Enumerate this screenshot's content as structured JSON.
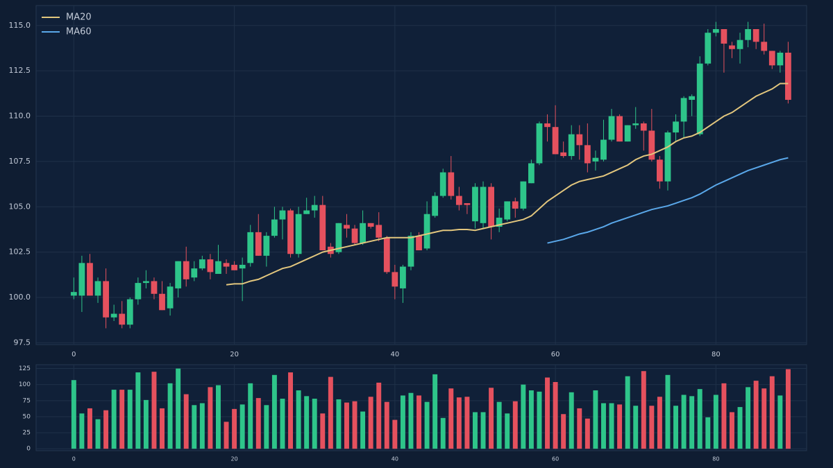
{
  "chart_data": [
    {
      "type": "candlestick",
      "x": [
        0,
        1,
        2,
        3,
        4,
        5,
        6,
        7,
        8,
        9,
        10,
        11,
        12,
        13,
        14,
        15,
        16,
        17,
        18,
        19,
        20,
        21,
        22,
        23,
        24,
        25,
        26,
        27,
        28,
        29,
        30,
        31,
        32,
        33,
        34,
        35,
        36,
        37,
        38,
        39,
        40,
        41,
        42,
        43,
        44,
        45,
        46,
        47,
        48,
        49,
        50,
        51,
        52,
        53,
        54,
        55,
        56,
        57,
        58,
        59,
        60,
        61,
        62,
        63,
        64,
        65,
        66,
        67,
        68,
        69,
        70,
        71,
        72,
        73,
        74,
        75,
        76,
        77,
        78,
        79,
        80,
        81,
        82,
        83,
        84,
        85,
        86,
        87,
        88,
        89
      ],
      "open": [
        100.1,
        100.1,
        101.9,
        100.1,
        100.9,
        98.9,
        99.1,
        98.5,
        99.9,
        100.8,
        100.9,
        100.2,
        99.4,
        100.5,
        102.0,
        101.1,
        101.6,
        102.1,
        101.3,
        101.9,
        101.8,
        101.6,
        101.9,
        103.6,
        102.3,
        103.4,
        104.3,
        104.8,
        102.4,
        104.6,
        104.8,
        105.1,
        102.8,
        102.5,
        104.0,
        103.8,
        103.0,
        104.1,
        104.0,
        103.3,
        101.4,
        100.5,
        101.7,
        103.4,
        102.7,
        104.5,
        105.6,
        106.9,
        105.6,
        105.2,
        104.2,
        104.1,
        106.1,
        103.9,
        104.3,
        105.3,
        104.9,
        106.3,
        107.4,
        109.6,
        109.4,
        108.0,
        107.8,
        109.0,
        108.4,
        107.5,
        107.6,
        108.7,
        110.0,
        108.6,
        109.5,
        109.6,
        109.2,
        107.6,
        106.4,
        109.1,
        109.7,
        110.9,
        109.0,
        112.9,
        114.6,
        114.8,
        113.9,
        113.7,
        114.2,
        114.8,
        114.1,
        113.6,
        112.8,
        113.5
      ],
      "high": [
        101.1,
        102.3,
        102.4,
        101.1,
        101.6,
        99.6,
        99.8,
        100.0,
        101.1,
        101.5,
        101.1,
        100.9,
        100.8,
        102.0,
        102.8,
        102.0,
        102.3,
        102.4,
        102.9,
        102.1,
        102.0,
        102.2,
        104.0,
        104.6,
        103.6,
        105.0,
        105.0,
        104.9,
        105.0,
        105.5,
        105.6,
        105.6,
        103.0,
        104.1,
        104.6,
        104.0,
        104.8,
        104.1,
        104.7,
        103.4,
        101.8,
        101.8,
        103.6,
        103.6,
        105.3,
        105.8,
        107.1,
        107.8,
        106.1,
        105.2,
        106.3,
        106.4,
        106.3,
        104.9,
        105.3,
        105.5,
        106.4,
        107.6,
        109.7,
        110.1,
        110.6,
        108.6,
        109.5,
        109.5,
        109.6,
        108.1,
        109.8,
        110.4,
        110.1,
        109.5,
        110.5,
        109.7,
        110.4,
        107.8,
        109.2,
        110.1,
        111.1,
        111.2,
        113.3,
        114.8,
        115.2,
        114.8,
        114.1,
        114.6,
        115.2,
        114.8,
        115.1,
        113.6,
        113.6,
        114.1
      ],
      "low": [
        99.9,
        99.2,
        100.1,
        99.7,
        98.3,
        98.7,
        98.3,
        98.3,
        99.6,
        100.5,
        99.9,
        99.3,
        99.0,
        100.0,
        100.6,
        100.9,
        101.5,
        101.0,
        101.3,
        101.3,
        101.5,
        99.8,
        101.7,
        102.3,
        101.7,
        103.3,
        103.2,
        102.2,
        102.2,
        104.6,
        104.4,
        102.6,
        102.2,
        102.4,
        103.3,
        102.9,
        102.9,
        103.8,
        103.1,
        101.3,
        99.9,
        99.7,
        101.5,
        102.6,
        102.6,
        104.4,
        105.5,
        105.4,
        104.8,
        104.6,
        103.8,
        103.8,
        103.2,
        103.6,
        104.2,
        104.4,
        104.8,
        106.3,
        107.3,
        108.6,
        107.9,
        107.7,
        107.6,
        107.6,
        106.9,
        107.0,
        107.5,
        108.6,
        108.6,
        108.6,
        109.3,
        108.1,
        107.5,
        106.0,
        105.9,
        108.6,
        108.8,
        110.0,
        108.9,
        112.8,
        114.4,
        112.4,
        113.2,
        112.9,
        113.8,
        113.7,
        113.4,
        112.6,
        112.4,
        110.7
      ],
      "close": [
        100.3,
        101.9,
        100.1,
        100.9,
        98.9,
        99.1,
        98.5,
        99.9,
        100.8,
        100.9,
        100.2,
        99.3,
        100.6,
        102.0,
        101.0,
        101.6,
        102.1,
        101.4,
        102.0,
        101.7,
        101.5,
        101.8,
        103.6,
        102.3,
        103.4,
        104.3,
        104.8,
        102.4,
        104.6,
        104.8,
        105.1,
        102.6,
        102.4,
        104.1,
        103.8,
        103.0,
        104.1,
        103.9,
        103.3,
        101.4,
        100.6,
        101.7,
        103.4,
        102.6,
        104.6,
        105.6,
        106.9,
        105.6,
        105.1,
        105.1,
        106.1,
        106.1,
        103.9,
        104.4,
        105.3,
        104.9,
        106.4,
        107.4,
        109.6,
        109.4,
        107.9,
        107.8,
        109.0,
        108.4,
        107.4,
        107.7,
        108.7,
        110.0,
        108.6,
        109.5,
        109.6,
        109.2,
        107.6,
        106.4,
        109.1,
        109.7,
        111.0,
        111.1,
        112.9,
        114.6,
        114.8,
        114.0,
        113.7,
        114.2,
        114.8,
        114.1,
        113.6,
        112.8,
        113.5,
        110.9
      ],
      "up_color": "#2ec58a",
      "down_color": "#e5515e",
      "series": [
        {
          "name": "MA20",
          "color": "#e3c77e",
          "values": [
            null,
            null,
            null,
            null,
            null,
            null,
            null,
            null,
            null,
            null,
            null,
            null,
            null,
            null,
            null,
            null,
            null,
            null,
            null,
            100.7,
            100.75,
            100.75,
            100.9,
            101.0,
            101.2,
            101.4,
            101.6,
            101.7,
            101.9,
            102.1,
            102.3,
            102.5,
            102.6,
            102.7,
            102.8,
            102.9,
            103.0,
            103.1,
            103.2,
            103.3,
            103.3,
            103.3,
            103.3,
            103.4,
            103.5,
            103.6,
            103.7,
            103.7,
            103.75,
            103.75,
            103.7,
            103.8,
            103.9,
            104.0,
            104.1,
            104.2,
            104.3,
            104.5,
            104.9,
            105.3,
            105.6,
            105.9,
            106.2,
            106.4,
            106.5,
            106.6,
            106.7,
            106.9,
            107.1,
            107.3,
            107.6,
            107.8,
            107.9,
            108.1,
            108.3,
            108.6,
            108.8,
            108.9,
            109.1,
            109.4,
            109.7,
            110.0,
            110.2,
            110.5,
            110.8,
            111.1,
            111.3,
            111.5,
            111.8,
            111.8
          ]
        },
        {
          "name": "MA60",
          "color": "#5aa8ea",
          "values": [
            null,
            null,
            null,
            null,
            null,
            null,
            null,
            null,
            null,
            null,
            null,
            null,
            null,
            null,
            null,
            null,
            null,
            null,
            null,
            null,
            null,
            null,
            null,
            null,
            null,
            null,
            null,
            null,
            null,
            null,
            null,
            null,
            null,
            null,
            null,
            null,
            null,
            null,
            null,
            null,
            null,
            null,
            null,
            null,
            null,
            null,
            null,
            null,
            null,
            null,
            null,
            null,
            null,
            null,
            null,
            null,
            null,
            null,
            null,
            103.0,
            103.1,
            103.2,
            103.35,
            103.5,
            103.6,
            103.75,
            103.9,
            104.1,
            104.25,
            104.4,
            104.55,
            104.7,
            104.85,
            104.95,
            105.05,
            105.2,
            105.35,
            105.5,
            105.7,
            105.95,
            106.2,
            106.4,
            106.6,
            106.8,
            107.0,
            107.15,
            107.3,
            107.45,
            107.6,
            107.7
          ]
        }
      ],
      "xlim": [
        -4.7,
        91.3
      ],
      "xticks": [
        0,
        20,
        40,
        60,
        80
      ],
      "ylim": [
        97.4,
        116.1
      ],
      "yticks": [
        {
          "value": 97.5,
          "label": "97.5"
        },
        {
          "value": 100,
          "label": "100.0"
        },
        {
          "value": 102.5,
          "label": "102.5"
        },
        {
          "value": 105,
          "label": "105.0"
        },
        {
          "value": 107.5,
          "label": "107.5"
        },
        {
          "value": 110,
          "label": "110.0"
        },
        {
          "value": 112.5,
          "label": "112.5"
        },
        {
          "value": 115,
          "label": "115.0"
        }
      ],
      "grid": true,
      "legend": "upper left"
    },
    {
      "type": "bar",
      "values": [
        107,
        55,
        63,
        46,
        60,
        92,
        92,
        92,
        119,
        76,
        120,
        63,
        102,
        125,
        85,
        68,
        71,
        96,
        99,
        42,
        62,
        69,
        102,
        79,
        68,
        115,
        78,
        119,
        91,
        82,
        78,
        55,
        112,
        77,
        72,
        74,
        58,
        81,
        103,
        73,
        45,
        83,
        87,
        83,
        73,
        116,
        48,
        94,
        80,
        81,
        57,
        57,
        95,
        73,
        55,
        74,
        100,
        91,
        89,
        111,
        104,
        54,
        88,
        63,
        47,
        91,
        71,
        71,
        69,
        113,
        67,
        121,
        67,
        81,
        115,
        67,
        84,
        82,
        93,
        49,
        84,
        102,
        57,
        65,
        96,
        106,
        94,
        113,
        83,
        124
      ],
      "xlim": [
        -4.7,
        91.3
      ],
      "xticks": [
        0,
        20,
        40,
        60,
        80
      ],
      "ylim": [
        -3,
        131
      ],
      "yticks": [
        0,
        25,
        50,
        75,
        100,
        125
      ],
      "grid": true
    }
  ]
}
